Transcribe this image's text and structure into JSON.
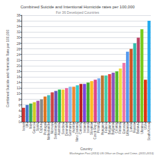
{
  "chart_data": {
    "type": "bar",
    "title": "Combined Suicide and Intentional Homicide rates per 100,000",
    "subtitle": "For 36 Developed Countries",
    "xlabel": "Country",
    "ylabel": "Combined Suicide and Homicide Rate per 100,000",
    "annotations": [
      "Washington Post (2013) US Office on Drugs and Crime, (2011-2013)"
    ],
    "categories": [
      "Israel",
      "UK",
      "Italy",
      "Greece",
      "Spain",
      "Cyprus",
      "Portugal",
      "Netherlands",
      "Norway",
      "Switzerland",
      "Australia",
      "Sweden",
      "Denmark",
      "Germany",
      "Austria",
      "New Zealand",
      "Canada",
      "Ireland",
      "Iceland",
      "Slovakia",
      "Czech Rep.",
      "Poland",
      "Hungary",
      "France",
      "Belgium",
      "Bulgaria",
      "Croatia",
      "Finland",
      "Estonia",
      "Lithuania",
      "Latvia",
      "Russia",
      "Belarus",
      "Ukraine",
      "USA",
      "South Korea"
    ],
    "values": [
      5.0,
      6.0,
      6.5,
      7.0,
      7.5,
      8.0,
      9.0,
      9.5,
      10.5,
      11.0,
      11.5,
      11.5,
      12.0,
      12.5,
      12.5,
      13.0,
      13.5,
      13.5,
      14.0,
      14.5,
      15.0,
      15.5,
      16.5,
      16.5,
      17.0,
      17.5,
      18.0,
      19.0,
      21.0,
      25.0,
      26.0,
      28.0,
      30.0,
      33.0,
      15.0,
      36.0
    ],
    "colors": [
      "#cc3333",
      "#4477cc",
      "#33aa55",
      "#cccc22",
      "#aa55aa",
      "#888888",
      "#dd7722",
      "#44bbbb",
      "#cc4444",
      "#6655bb",
      "#22bb55",
      "#eecc33",
      "#ee6699",
      "#88bbee",
      "#ee8833",
      "#33cccc",
      "#bb2222",
      "#7744dd",
      "#44aa33",
      "#ffbb22",
      "#dd4488",
      "#77aaee",
      "#bb7733",
      "#44ccaa",
      "#ee4444",
      "#8855bb",
      "#55bb33",
      "#eedd44",
      "#ee77aa",
      "#5599ee",
      "#cc5522",
      "#33bbaa",
      "#bb4466",
      "#77cc22",
      "#dd3311",
      "#22aaee"
    ],
    "ylim": [
      0,
      38
    ],
    "yticks": [
      0,
      2,
      4,
      6,
      8,
      10,
      12,
      14,
      16,
      18,
      20,
      22,
      24,
      26,
      28,
      30,
      32,
      34,
      36,
      38
    ],
    "grid": true
  }
}
